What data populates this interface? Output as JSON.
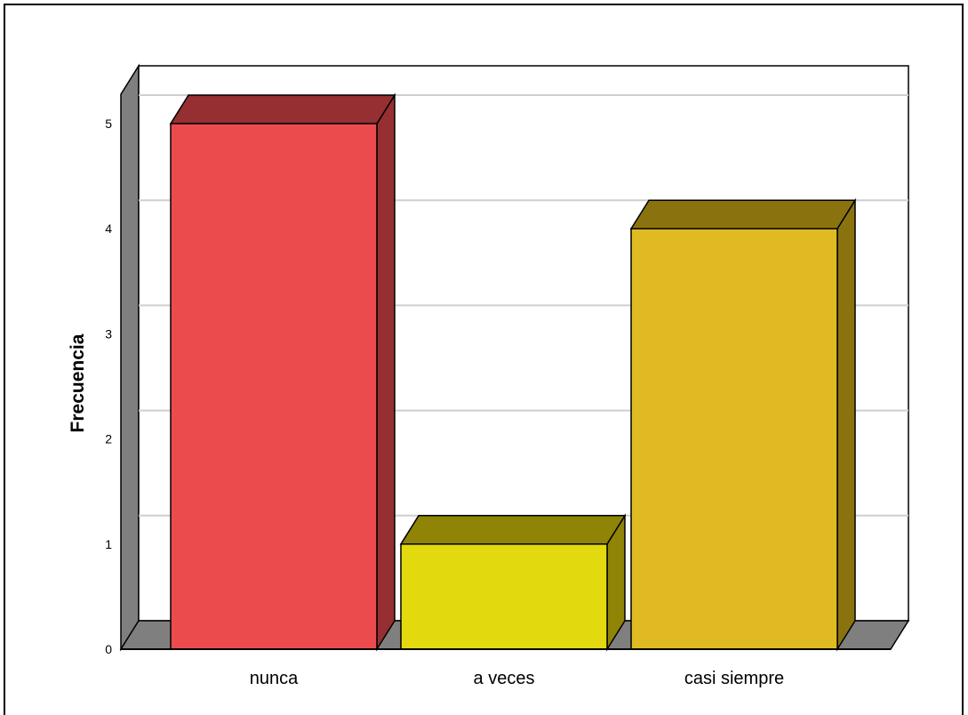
{
  "chart_data": {
    "type": "bar",
    "style": "3d",
    "title": "",
    "xlabel": "",
    "ylabel": "Frecuencia",
    "categories": [
      "nunca",
      "a veces",
      "casi siempre"
    ],
    "values": [
      5,
      1,
      4
    ],
    "ylim": [
      0,
      5
    ],
    "yticks": [
      "0",
      "1",
      "2",
      "3",
      "4",
      "5"
    ],
    "grid": true,
    "legend": "none",
    "colors": {
      "bars": [
        {
          "front": "#ec4b4e",
          "top": "#962f31",
          "side": "#962f31"
        },
        {
          "front": "#e2d90f",
          "top": "#8f8406",
          "side": "#8f8406"
        },
        {
          "front": "#e0ba22",
          "top": "#8a730f",
          "side": "#8a730f"
        }
      ],
      "walls": "#7f7f7f",
      "grid": "#cfcfcf"
    }
  }
}
